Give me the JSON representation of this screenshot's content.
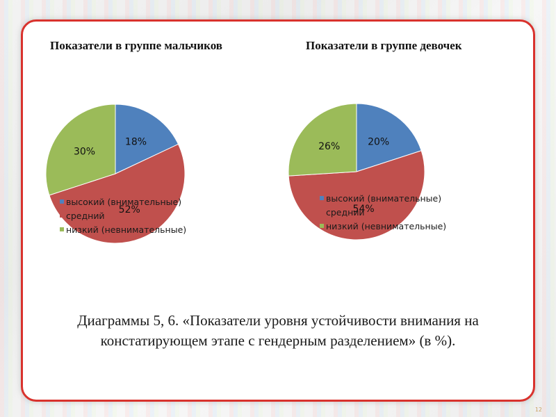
{
  "chart_data": [
    {
      "type": "pie",
      "title": "Показатели в группе мальчиков",
      "categories": [
        "высокий (внимательные)",
        "средний",
        "низкий (невнимательные)"
      ],
      "values": [
        18,
        52,
        30
      ],
      "labels": [
        "18%",
        "52%",
        "30%"
      ],
      "colors": [
        "#4f81bd",
        "#c0504d",
        "#9bbb59"
      ],
      "legend": "overlaid-bottom"
    },
    {
      "type": "pie",
      "title": "Показатели в группе девочек",
      "categories": [
        "высокий (внимательные)",
        "средний",
        "низкий (невнимательные)"
      ],
      "values": [
        20,
        54,
        26
      ],
      "labels": [
        "20%",
        "54%",
        "26%"
      ],
      "colors": [
        "#4f81bd",
        "#c0504d",
        "#9bbb59"
      ],
      "legend": "overlaid-bottom"
    }
  ],
  "caption": "Диаграммы 5, 6. «Показатели уровня устойчивости внимания на констатирующем этапе с гендерным разделением» (в %).",
  "page_number": "12"
}
